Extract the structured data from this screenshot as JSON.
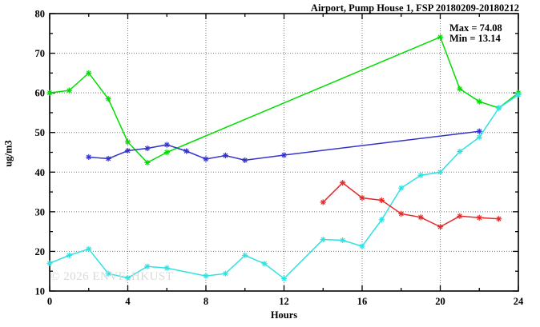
{
  "title": "Airport, Pump House 1, FSP 20180209-20180212",
  "annotations": {
    "max_label": "Max = 74.08",
    "min_label": "Min = 13.14"
  },
  "watermark": "© 2026 ENVF, HKUST",
  "chart_data": {
    "type": "line",
    "title": "Airport, Pump House 1, FSP 20180209-20180212",
    "xlabel": "Hours",
    "ylabel": "ug/m3",
    "xlim": [
      0,
      24
    ],
    "ylim": [
      10,
      80
    ],
    "x_major_ticks": [
      0,
      4,
      8,
      12,
      16,
      20,
      24
    ],
    "x_minor_step": 2,
    "y_major_ticks": [
      10,
      20,
      30,
      40,
      50,
      60,
      70,
      80
    ],
    "y_minor_step": 5,
    "grid": true,
    "legend_position": "none",
    "max_value": 74.08,
    "min_value": 13.14,
    "marker": "asterisk",
    "grid_color": "#7a7a7a",
    "border_color": "#000000",
    "watermark_color": "#d9d9d9",
    "series": [
      {
        "name": "day1-green",
        "color": "#00dd00",
        "points": [
          [
            0,
            60.0
          ],
          [
            1,
            60.6
          ],
          [
            2,
            65.0
          ],
          [
            3,
            58.5
          ],
          [
            4,
            47.6
          ],
          [
            5,
            42.4
          ],
          [
            6,
            45.0
          ],
          [
            20,
            74.08
          ],
          [
            21,
            61.0
          ],
          [
            22,
            57.8
          ],
          [
            23,
            56.2
          ],
          [
            24,
            60.0
          ]
        ]
      },
      {
        "name": "day2-blue",
        "color": "#3333cc",
        "points": [
          [
            2,
            43.8
          ],
          [
            3,
            43.4
          ],
          [
            4,
            45.4
          ],
          [
            5,
            46.0
          ],
          [
            6,
            46.9
          ],
          [
            7,
            45.3
          ],
          [
            8,
            43.3
          ],
          [
            9,
            44.2
          ],
          [
            10,
            43.0
          ],
          [
            12,
            44.3
          ],
          [
            22,
            50.3
          ]
        ]
      },
      {
        "name": "day3-cyan",
        "color": "#2ee2e2",
        "points": [
          [
            0,
            17.0
          ],
          [
            1,
            19.0
          ],
          [
            2,
            20.6
          ],
          [
            3,
            14.4
          ],
          [
            4,
            13.3
          ],
          [
            5,
            16.2
          ],
          [
            6,
            15.8
          ],
          [
            8,
            13.8
          ],
          [
            9,
            14.4
          ],
          [
            10,
            19.0
          ],
          [
            11,
            16.9
          ],
          [
            12,
            13.14
          ],
          [
            14,
            23.0
          ],
          [
            15,
            22.8
          ],
          [
            16,
            21.3
          ],
          [
            17,
            28.0
          ],
          [
            18,
            36.0
          ],
          [
            19,
            39.2
          ],
          [
            20,
            40.0
          ],
          [
            21,
            45.2
          ],
          [
            22,
            48.8
          ],
          [
            23,
            56.2
          ],
          [
            24,
            59.5
          ]
        ]
      },
      {
        "name": "day4-red",
        "color": "#e62a2a",
        "points": [
          [
            14,
            32.4
          ],
          [
            15,
            37.3
          ],
          [
            16,
            33.5
          ],
          [
            17,
            32.9
          ],
          [
            18,
            29.5
          ],
          [
            19,
            28.6
          ],
          [
            20,
            26.2
          ],
          [
            21,
            28.9
          ],
          [
            22,
            28.5
          ],
          [
            23,
            28.2
          ]
        ]
      }
    ]
  }
}
